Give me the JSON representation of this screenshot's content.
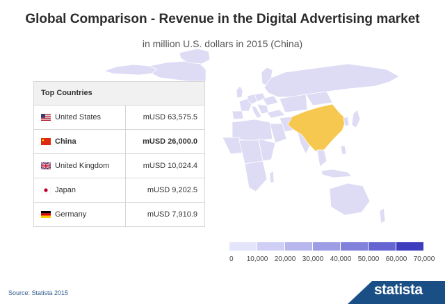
{
  "header": {
    "title": "Global Comparison - Revenue in the Digital Advertising market",
    "subtitle": "in million U.S. dollars in 2015 (China)"
  },
  "table": {
    "heading": "Top Countries",
    "rows": [
      {
        "country": "United States",
        "value": "mUSD 63,575.5",
        "flag": "us-flag-icon",
        "bold": false
      },
      {
        "country": "China",
        "value": "mUSD 26,000.0",
        "flag": "china-flag-icon",
        "bold": true
      },
      {
        "country": "United Kingdom",
        "value": "mUSD 10,024.4",
        "flag": "uk-flag-icon",
        "bold": false
      },
      {
        "country": "Japan",
        "value": "mUSD 9,202.5",
        "flag": "japan-flag-icon",
        "bold": false
      },
      {
        "country": "Germany",
        "value": "mUSD 7,910.9",
        "flag": "germany-flag-icon",
        "bold": false
      }
    ]
  },
  "chart_data": {
    "type": "choropleth",
    "title": "Global Comparison - Revenue in the Digital Advertising market",
    "subtitle": "in million U.S. dollars in 2015 (China)",
    "unit": "million U.S. dollars",
    "highlight": "China",
    "legend": {
      "min": 0,
      "max": 70000,
      "step": 10000,
      "tick_labels": [
        "0",
        "10,000",
        "20,000",
        "30,000",
        "40,000",
        "50,000",
        "60,000",
        "70,000"
      ],
      "colors": [
        "#e4e4fb",
        "#cfcff5",
        "#b7b7ee",
        "#9d9de6",
        "#8181dc",
        "#6565d2",
        "#3d3dbd"
      ]
    },
    "values": [
      {
        "country": "United States",
        "value": 63575.5
      },
      {
        "country": "China",
        "value": 26000.0
      },
      {
        "country": "United Kingdom",
        "value": 10024.4
      },
      {
        "country": "Japan",
        "value": 9202.5
      },
      {
        "country": "Germany",
        "value": 7910.9
      }
    ]
  },
  "colors": {
    "highlight": "#f7c850",
    "land_default": "#dedcf5",
    "land_stroke": "#ffffff",
    "brand_bar": "#1a4f86"
  },
  "footer": {
    "source": "Source: Statista 2015",
    "brand": "statista"
  }
}
